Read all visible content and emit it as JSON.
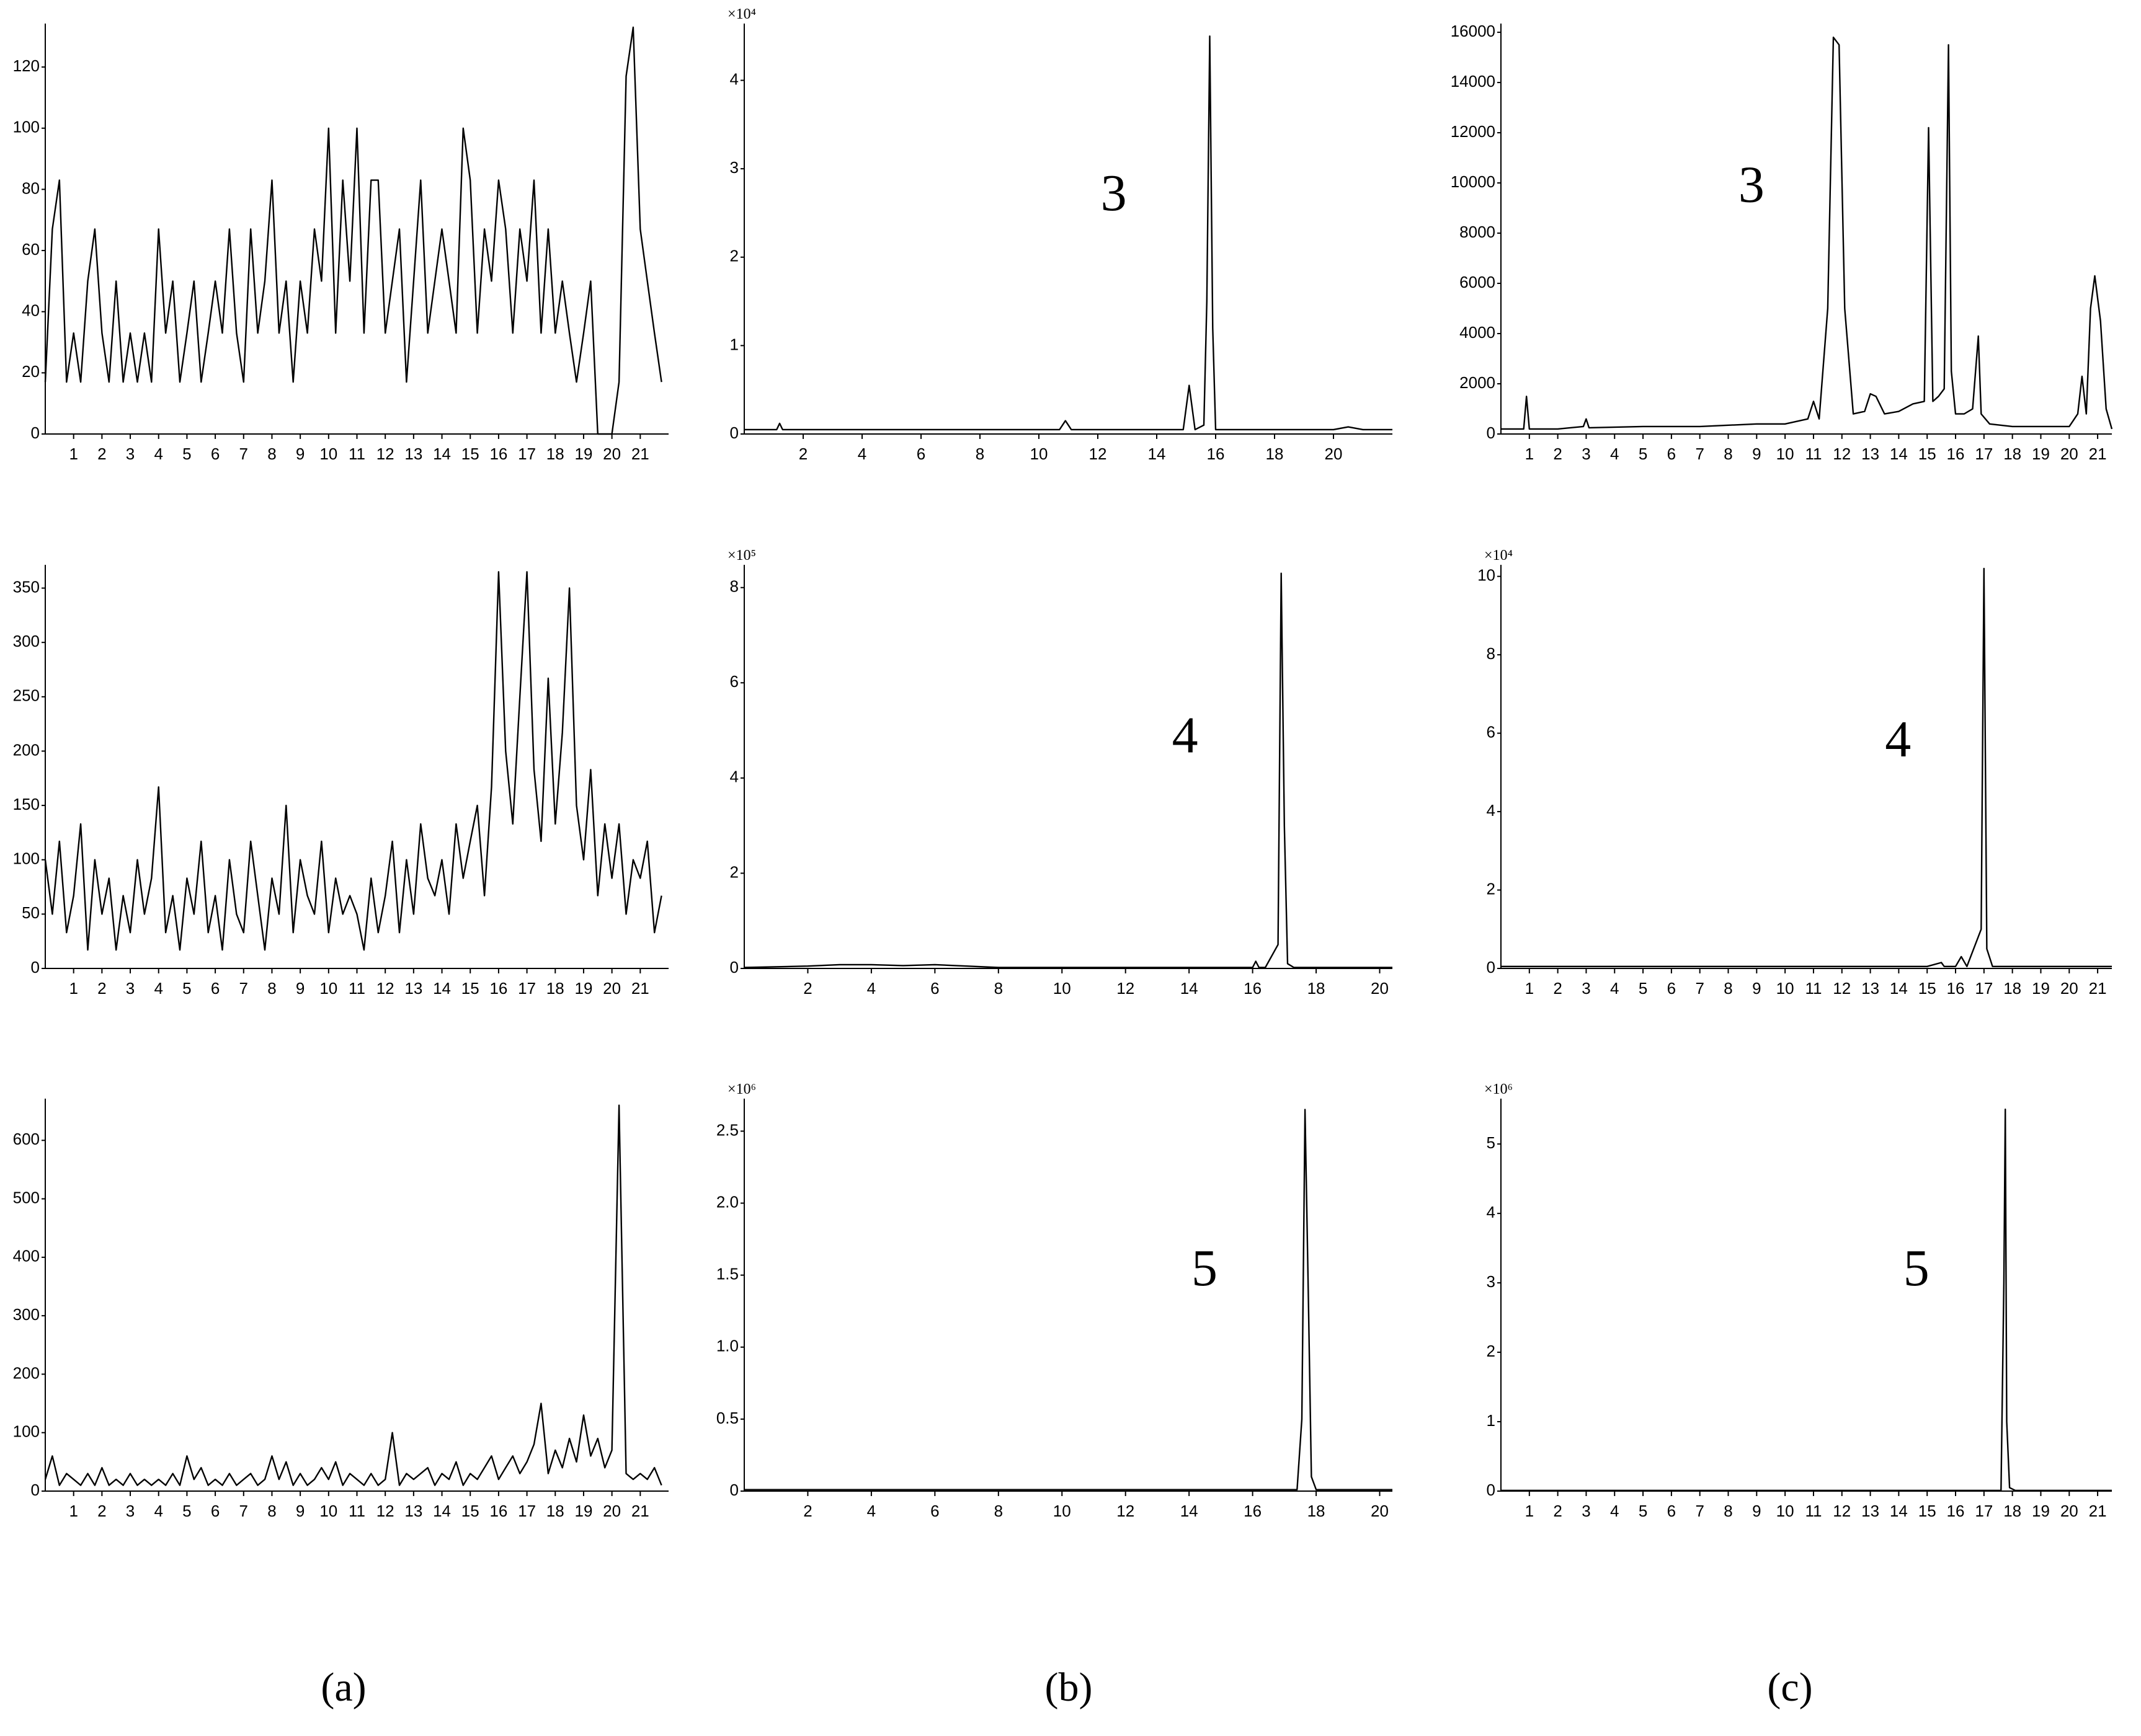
{
  "captions": [
    "(a)",
    "(b)",
    "(c)"
  ],
  "chart_data": [
    {
      "type": "line",
      "color": "#000000",
      "xlim": [
        0,
        22
      ],
      "ylim": [
        0,
        133
      ],
      "xticks": [
        1,
        2,
        3,
        4,
        5,
        6,
        7,
        8,
        9,
        10,
        11,
        12,
        13,
        14,
        15,
        16,
        17,
        18,
        19,
        20,
        21
      ],
      "yticks": [
        0,
        20,
        40,
        60,
        80,
        100,
        120
      ],
      "x": [
        0,
        0.25,
        0.5,
        0.75,
        1,
        1.25,
        1.5,
        1.75,
        2,
        2.25,
        2.5,
        2.75,
        3,
        3.25,
        3.5,
        3.75,
        4,
        4.25,
        4.5,
        4.75,
        5,
        5.25,
        5.5,
        5.75,
        6,
        6.25,
        6.5,
        6.75,
        7,
        7.25,
        7.5,
        7.75,
        8,
        8.25,
        8.5,
        8.75,
        9,
        9.25,
        9.5,
        9.75,
        10,
        10.25,
        10.5,
        10.75,
        11,
        11.25,
        11.5,
        11.75,
        12,
        12.25,
        12.5,
        12.75,
        13,
        13.25,
        13.5,
        13.75,
        14,
        14.25,
        14.5,
        14.75,
        15,
        15.25,
        15.5,
        15.75,
        16,
        16.25,
        16.5,
        16.75,
        17,
        17.25,
        17.5,
        17.75,
        18,
        18.25,
        18.5,
        18.75,
        19,
        19.25,
        19.5,
        19.75,
        20,
        20.25,
        20.5,
        20.75,
        21,
        21.25,
        21.5,
        21.75
      ],
      "values": [
        17,
        67,
        83,
        17,
        33,
        17,
        50,
        67,
        33,
        17,
        50,
        17,
        33,
        17,
        33,
        17,
        67,
        33,
        50,
        17,
        33,
        50,
        17,
        33,
        50,
        33,
        67,
        33,
        17,
        67,
        33,
        50,
        83,
        33,
        50,
        17,
        50,
        33,
        67,
        50,
        100,
        33,
        83,
        50,
        100,
        33,
        83,
        83,
        33,
        50,
        67,
        17,
        50,
        83,
        33,
        50,
        67,
        50,
        33,
        100,
        83,
        33,
        67,
        50,
        83,
        67,
        33,
        67,
        50,
        83,
        33,
        67,
        33,
        50,
        33,
        17,
        33,
        50,
        0,
        0,
        0,
        17,
        117,
        133,
        67,
        50,
        33,
        17
      ]
    },
    {
      "type": "line",
      "color": "#000000",
      "xlim": [
        0,
        22
      ],
      "ylim": [
        0,
        368
      ],
      "xticks": [
        1,
        2,
        3,
        4,
        5,
        6,
        7,
        8,
        9,
        10,
        11,
        12,
        13,
        14,
        15,
        16,
        17,
        18,
        19,
        20,
        21
      ],
      "yticks": [
        0,
        50,
        100,
        150,
        200,
        250,
        300,
        350
      ],
      "x": [
        0,
        0.25,
        0.5,
        0.75,
        1,
        1.25,
        1.5,
        1.75,
        2,
        2.25,
        2.5,
        2.75,
        3,
        3.25,
        3.5,
        3.75,
        4,
        4.25,
        4.5,
        4.75,
        5,
        5.25,
        5.5,
        5.75,
        6,
        6.25,
        6.5,
        6.75,
        7,
        7.25,
        7.5,
        7.75,
        8,
        8.25,
        8.5,
        8.75,
        9,
        9.25,
        9.5,
        9.75,
        10,
        10.25,
        10.5,
        10.75,
        11,
        11.25,
        11.5,
        11.75,
        12,
        12.25,
        12.5,
        12.75,
        13,
        13.25,
        13.5,
        13.75,
        14,
        14.25,
        14.5,
        14.75,
        15,
        15.25,
        15.5,
        15.75,
        16,
        16.25,
        16.5,
        16.75,
        17,
        17.25,
        17.5,
        17.75,
        18,
        18.25,
        18.5,
        18.75,
        19,
        19.25,
        19.5,
        19.75,
        20,
        20.25,
        20.5,
        20.75,
        21,
        21.25,
        21.5,
        21.75
      ],
      "values": [
        100,
        50,
        117,
        33,
        67,
        133,
        17,
        100,
        50,
        83,
        17,
        67,
        33,
        100,
        50,
        83,
        167,
        33,
        67,
        17,
        83,
        50,
        117,
        33,
        67,
        17,
        100,
        50,
        33,
        117,
        67,
        17,
        83,
        50,
        150,
        33,
        100,
        67,
        50,
        117,
        33,
        83,
        50,
        67,
        50,
        17,
        83,
        33,
        67,
        117,
        33,
        100,
        50,
        133,
        83,
        67,
        100,
        50,
        133,
        83,
        117,
        150,
        67,
        167,
        365,
        200,
        133,
        250,
        365,
        183,
        117,
        267,
        133,
        217,
        350,
        150,
        100,
        183,
        67,
        133,
        83,
        133,
        50,
        100,
        83,
        117,
        33,
        67
      ]
    },
    {
      "type": "line",
      "color": "#000000",
      "xlim": [
        0,
        22
      ],
      "ylim": [
        0,
        665
      ],
      "xticks": [
        1,
        2,
        3,
        4,
        5,
        6,
        7,
        8,
        9,
        10,
        11,
        12,
        13,
        14,
        15,
        16,
        17,
        18,
        19,
        20,
        21
      ],
      "yticks": [
        0,
        100,
        200,
        300,
        400,
        500,
        600
      ],
      "x": [
        0,
        0.25,
        0.5,
        0.75,
        1,
        1.25,
        1.5,
        1.75,
        2,
        2.25,
        2.5,
        2.75,
        3,
        3.25,
        3.5,
        3.75,
        4,
        4.25,
        4.5,
        4.75,
        5,
        5.25,
        5.5,
        5.75,
        6,
        6.25,
        6.5,
        6.75,
        7,
        7.25,
        7.5,
        7.75,
        8,
        8.25,
        8.5,
        8.75,
        9,
        9.25,
        9.5,
        9.75,
        10,
        10.25,
        10.5,
        10.75,
        11,
        11.25,
        11.5,
        11.75,
        12,
        12.25,
        12.5,
        12.75,
        13,
        13.25,
        13.5,
        13.75,
        14,
        14.25,
        14.5,
        14.75,
        15,
        15.25,
        15.5,
        15.75,
        16,
        16.25,
        16.5,
        16.75,
        17,
        17.25,
        17.5,
        17.75,
        18,
        18.25,
        18.5,
        18.75,
        19,
        19.25,
        19.5,
        19.75,
        20,
        20.25,
        20.5,
        20.75,
        21,
        21.25,
        21.5,
        21.75
      ],
      "values": [
        20,
        60,
        10,
        30,
        20,
        10,
        30,
        10,
        40,
        10,
        20,
        10,
        30,
        10,
        20,
        10,
        20,
        10,
        30,
        10,
        60,
        20,
        40,
        10,
        20,
        10,
        30,
        10,
        20,
        30,
        10,
        20,
        60,
        20,
        50,
        10,
        30,
        10,
        20,
        40,
        20,
        50,
        10,
        30,
        20,
        10,
        30,
        10,
        20,
        100,
        10,
        30,
        20,
        30,
        40,
        10,
        30,
        20,
        50,
        10,
        30,
        20,
        40,
        60,
        20,
        40,
        60,
        30,
        50,
        80,
        150,
        30,
        70,
        40,
        90,
        50,
        130,
        60,
        90,
        40,
        70,
        660,
        30,
        20,
        30,
        20,
        40,
        10
      ]
    },
    {
      "type": "line",
      "color": "#000000",
      "xlim": [
        0,
        22
      ],
      "ylim": [
        0,
        4.6
      ],
      "y_multiplier": "×10⁴",
      "annotation": "3",
      "xticks": [
        2,
        4,
        6,
        8,
        10,
        12,
        14,
        16,
        18,
        20
      ],
      "yticks": [
        0,
        1,
        2,
        3,
        4
      ],
      "x": [
        0,
        1.1,
        1.2,
        1.3,
        5,
        10.7,
        10.9,
        11.1,
        14.9,
        15.1,
        15.3,
        15.6,
        15.7,
        15.8,
        15.9,
        16.0,
        20,
        20.5,
        21,
        22
      ],
      "values": [
        0.05,
        0.05,
        0.12,
        0.05,
        0.05,
        0.05,
        0.15,
        0.05,
        0.05,
        0.55,
        0.05,
        0.1,
        1.5,
        4.5,
        1.2,
        0.05,
        0.05,
        0.08,
        0.05,
        0.05
      ]
    },
    {
      "type": "line",
      "color": "#000000",
      "xlim": [
        0,
        20.4
      ],
      "ylim": [
        0,
        8.4
      ],
      "y_multiplier": "×10⁵",
      "annotation": "4",
      "xticks": [
        2,
        4,
        6,
        8,
        10,
        12,
        14,
        16,
        18,
        20
      ],
      "yticks": [
        0,
        2,
        4,
        6,
        8
      ],
      "x": [
        0,
        2,
        3,
        4,
        5,
        6,
        7,
        8,
        16,
        16.1,
        16.2,
        16.4,
        16.8,
        16.9,
        17.0,
        17.1,
        17.3,
        20.4
      ],
      "values": [
        0.02,
        0.05,
        0.08,
        0.08,
        0.06,
        0.08,
        0.05,
        0.02,
        0.02,
        0.15,
        0.02,
        0.02,
        0.5,
        8.3,
        3,
        0.1,
        0.02,
        0.02
      ]
    },
    {
      "type": "line",
      "color": "#000000",
      "xlim": [
        0,
        20.4
      ],
      "ylim": [
        0,
        2.7
      ],
      "y_multiplier": "×10⁶",
      "annotation": "5",
      "xticks": [
        2,
        4,
        6,
        8,
        10,
        12,
        14,
        16,
        18,
        20
      ],
      "yticks": [
        0,
        0.5,
        {
          "value": 1,
          "label": "1.0"
        },
        1.5,
        {
          "value": 2,
          "label": "2.0"
        },
        2.5
      ],
      "x": [
        0,
        17.4,
        17.55,
        17.65,
        17.75,
        17.85,
        18,
        20.4
      ],
      "values": [
        0.01,
        0.01,
        0.5,
        2.65,
        1.4,
        0.1,
        0.01,
        0.01
      ]
    },
    {
      "type": "line",
      "color": "#000000",
      "xlim": [
        0,
        21.5
      ],
      "ylim": [
        0,
        16200
      ],
      "annotation": "3",
      "xticks": [
        1,
        2,
        3,
        4,
        5,
        6,
        7,
        8,
        9,
        10,
        11,
        12,
        13,
        14,
        15,
        16,
        17,
        18,
        19,
        20,
        21
      ],
      "yticks": [
        0,
        2000,
        4000,
        6000,
        8000,
        10000,
        12000,
        14000,
        16000
      ],
      "x": [
        0,
        0.8,
        0.9,
        1.0,
        1.1,
        2,
        2.9,
        3.0,
        3.1,
        5,
        7,
        9,
        10,
        10.8,
        11.0,
        11.2,
        11.5,
        11.7,
        11.9,
        12.1,
        12.4,
        12.8,
        13.0,
        13.2,
        13.5,
        14,
        14.5,
        14.9,
        15.05,
        15.2,
        15.4,
        15.6,
        15.75,
        15.85,
        16.0,
        16.3,
        16.6,
        16.8,
        16.9,
        17.2,
        18,
        19,
        20,
        20.3,
        20.45,
        20.6,
        20.75,
        20.9,
        21.1,
        21.3,
        21.5
      ],
      "values": [
        200,
        200,
        1500,
        200,
        200,
        200,
        300,
        600,
        250,
        300,
        300,
        400,
        400,
        600,
        1300,
        600,
        5000,
        15800,
        15500,
        5000,
        800,
        900,
        1600,
        1500,
        800,
        900,
        1200,
        1300,
        12200,
        1300,
        1500,
        1800,
        15500,
        2500,
        800,
        800,
        1000,
        3900,
        800,
        400,
        300,
        300,
        300,
        800,
        2300,
        800,
        5000,
        6300,
        4500,
        1000,
        200
      ]
    },
    {
      "type": "line",
      "color": "#000000",
      "xlim": [
        0,
        21.5
      ],
      "ylim": [
        0,
        10.2
      ],
      "y_multiplier": "×10⁴",
      "annotation": "4",
      "xticks": [
        1,
        2,
        3,
        4,
        5,
        6,
        7,
        8,
        9,
        10,
        11,
        12,
        13,
        14,
        15,
        16,
        17,
        18,
        19,
        20,
        21
      ],
      "yticks": [
        0,
        2,
        4,
        6,
        8,
        10
      ],
      "x": [
        0,
        15,
        15.5,
        15.6,
        16,
        16.2,
        16.4,
        16.9,
        17.0,
        17.1,
        17.3,
        21.5
      ],
      "values": [
        0.05,
        0.05,
        0.15,
        0.05,
        0.05,
        0.3,
        0.05,
        1,
        10.2,
        0.5,
        0.05,
        0.05
      ]
    },
    {
      "type": "line",
      "color": "#000000",
      "xlim": [
        0,
        21.5
      ],
      "ylim": [
        0,
        5.6
      ],
      "y_multiplier": "×10⁶",
      "annotation": "5",
      "xticks": [
        1,
        2,
        3,
        4,
        5,
        6,
        7,
        8,
        9,
        10,
        11,
        12,
        13,
        14,
        15,
        16,
        17,
        18,
        19,
        20,
        21
      ],
      "yticks": [
        0,
        1,
        2,
        3,
        4,
        5
      ],
      "x": [
        0,
        17.6,
        17.7,
        17.75,
        17.8,
        17.9,
        18.1,
        21.5
      ],
      "values": [
        0.01,
        0.01,
        3,
        5.5,
        1,
        0.05,
        0.01,
        0.01
      ]
    }
  ]
}
